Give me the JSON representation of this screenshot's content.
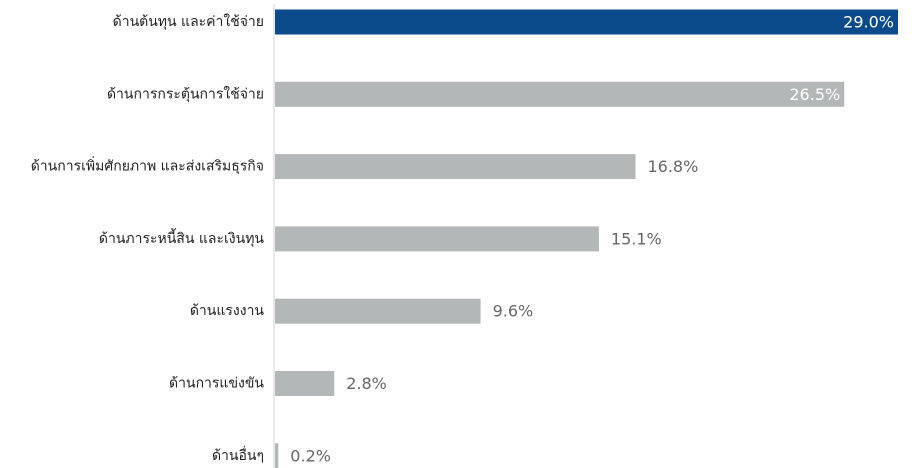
{
  "chart_data": {
    "type": "bar",
    "orientation": "horizontal",
    "categories": [
      "ด้านต้นทุน และค่าใช้จ่าย",
      "ด้านการกระตุ้นการใช้จ่าย",
      "ด้านการเพิ่มศักยภาพ และส่งเสริมธุรกิจ",
      "ด้านภาระหนี้สิน และเงินทุน",
      "ด้านแรงงาน",
      "ด้านการแข่งขัน",
      "ด้านอื่นๆ"
    ],
    "values": [
      29.0,
      26.5,
      16.8,
      15.1,
      9.6,
      2.8,
      0.2
    ],
    "value_labels": [
      "29.0%",
      "26.5%",
      "16.8%",
      "15.1%",
      "9.6%",
      "2.8%",
      "0.2%"
    ],
    "colors": [
      "#0b4a8b",
      "#b4b7b7",
      "#b4b7b7",
      "#b4b7b7",
      "#b4b7b7",
      "#b4b7b7",
      "#b4b7b7"
    ]
  }
}
